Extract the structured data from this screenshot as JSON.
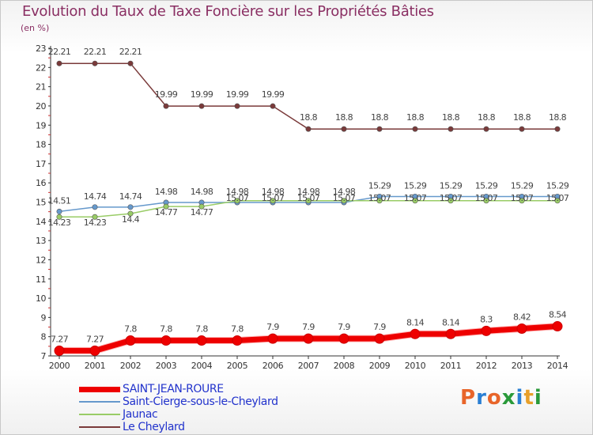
{
  "title": "Evolution du Taux de Taxe Foncière sur les Propriétés Bâties",
  "unit_label": "(en %)",
  "logo": {
    "text": "Proxiti",
    "colors": [
      "#e8652a",
      "#2a7fd4",
      "#e8652a",
      "#2a9a3a",
      "#2a7fd4",
      "#e8a02a",
      "#2a9a3a"
    ]
  },
  "chart_data": {
    "type": "line",
    "title": "Evolution du Taux de Taxe Foncière sur les Propriétés Bâties",
    "ylabel": "(en %)",
    "xlabel": "",
    "ylim": [
      7,
      23
    ],
    "yticks": [
      "7",
      "8",
      "9",
      "10",
      "11",
      "12",
      "13",
      "14",
      "15",
      "16",
      "17",
      "18",
      "19",
      "20",
      "21",
      "22",
      "23"
    ],
    "x": [
      "2000",
      "2001",
      "2002",
      "2003",
      "2004",
      "2005",
      "2006",
      "2007",
      "2008",
      "2009",
      "2010",
      "2011",
      "2012",
      "2013",
      "2014"
    ],
    "series": [
      {
        "name": "SAINT-JEAN-ROURE",
        "color": "#ee0000",
        "values": [
          7.27,
          7.27,
          7.8,
          7.8,
          7.8,
          7.8,
          7.9,
          7.9,
          7.9,
          7.9,
          8.14,
          8.14,
          8.3,
          8.42,
          8.54
        ],
        "labels": [
          "7.27",
          "7.27",
          "7.8",
          "7.8",
          "7.8",
          "7.8",
          "7.9",
          "7.9",
          "7.9",
          "7.9",
          "8.14",
          "8.14",
          "8.3",
          "8.42",
          "8.54"
        ]
      },
      {
        "name": "Saint-Cierge-sous-le-Cheylard",
        "color": "#6699cc",
        "values": [
          14.51,
          14.74,
          14.74,
          14.98,
          14.98,
          14.98,
          14.98,
          14.98,
          14.98,
          15.29,
          15.29,
          15.29,
          15.29,
          15.29,
          15.29
        ],
        "labels": [
          "14.51",
          "14.74",
          "14.74",
          "14.98",
          "14.98",
          "14.98",
          "14.98",
          "14.98",
          "14.98",
          "15.29",
          "15.29",
          "15.29",
          "15.29",
          "15.29",
          "15.29"
        ]
      },
      {
        "name": "Jaunac",
        "color": "#99cc66",
        "values": [
          14.23,
          14.23,
          14.4,
          14.77,
          14.77,
          15.07,
          15.07,
          15.07,
          15.07,
          15.07,
          15.07,
          15.07,
          15.07,
          15.07,
          15.07
        ],
        "labels": [
          "14.23",
          "14.23",
          "14.4",
          "14.77",
          "14.77",
          "15.07",
          "15.07",
          "15.07",
          "15.07",
          "15.07",
          "15.07",
          "15.07",
          "15.07",
          "15.07",
          "15.07"
        ]
      },
      {
        "name": "Le Cheylard",
        "color": "#7a3a3a",
        "values": [
          22.21,
          22.21,
          22.21,
          19.99,
          19.99,
          19.99,
          19.99,
          18.8,
          18.8,
          18.8,
          18.8,
          18.8,
          18.8,
          18.8,
          18.8
        ],
        "labels": [
          "22.21",
          "22.21",
          "22.21",
          "19.99",
          "19.99",
          "19.99",
          "19.99",
          "18.8",
          "18.8",
          "18.8",
          "18.8",
          "18.8",
          "18.8",
          "18.8",
          "18.8"
        ]
      }
    ],
    "legend_position": "bottom-left",
    "grid": false
  }
}
